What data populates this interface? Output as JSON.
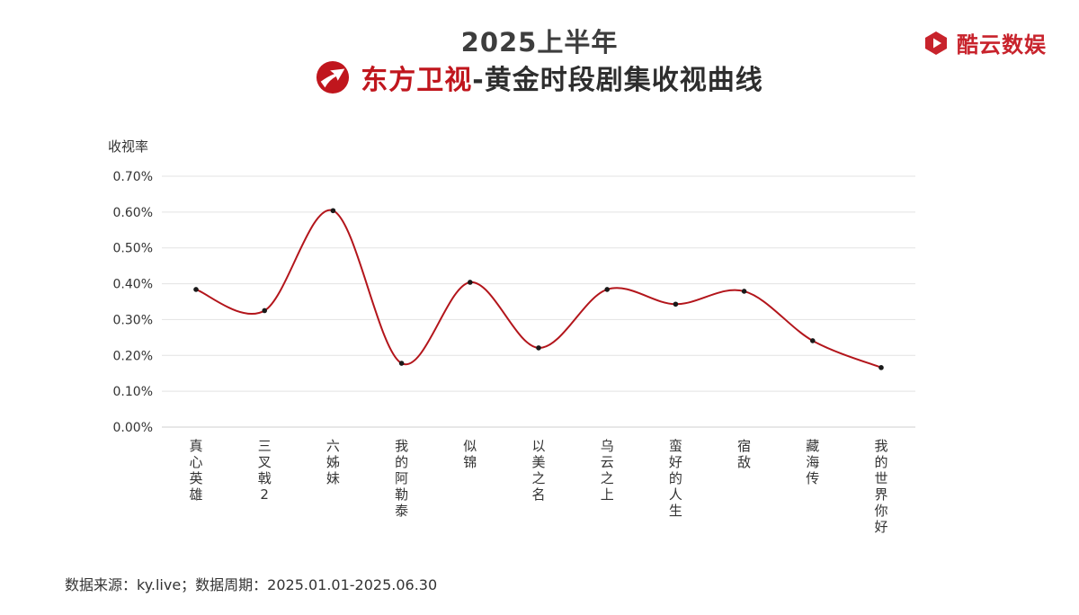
{
  "header": {
    "line1": "2025上半年",
    "channel_name": "东方卫视",
    "line2_rest": "-黄金时段剧集收视曲线",
    "channel_logo_icon": "dragon-tv-logo-icon"
  },
  "brand": {
    "name": "酷云数娱",
    "icon": "play-logo-icon",
    "color": "#c8232c"
  },
  "footer": {
    "source": "数据来源：ky.live；数据周期：2025.01.01-2025.06.30"
  },
  "chart_data": {
    "type": "line",
    "ylabel": "收视率",
    "xlabel": "",
    "categories": [
      "真心英雄",
      "三叉戟2",
      "六姊妹",
      "我的阿勒泰",
      "似锦",
      "以美之名",
      "乌云之上",
      "蛮好的人生",
      "宿敌",
      "藏海传",
      "我的世界你好"
    ],
    "series": [
      {
        "values": [
          0.384,
          0.325,
          0.604,
          0.178,
          0.404,
          0.221,
          0.384,
          0.343,
          0.379,
          0.241,
          0.166
        ]
      }
    ],
    "ylim": [
      0,
      0.7
    ],
    "yticks": [
      "0.00%",
      "0.10%",
      "0.20%",
      "0.30%",
      "0.40%",
      "0.50%",
      "0.60%",
      "0.70%"
    ],
    "grid": true,
    "line_color": "#b3151b",
    "point_color": "#1a1a1a"
  }
}
